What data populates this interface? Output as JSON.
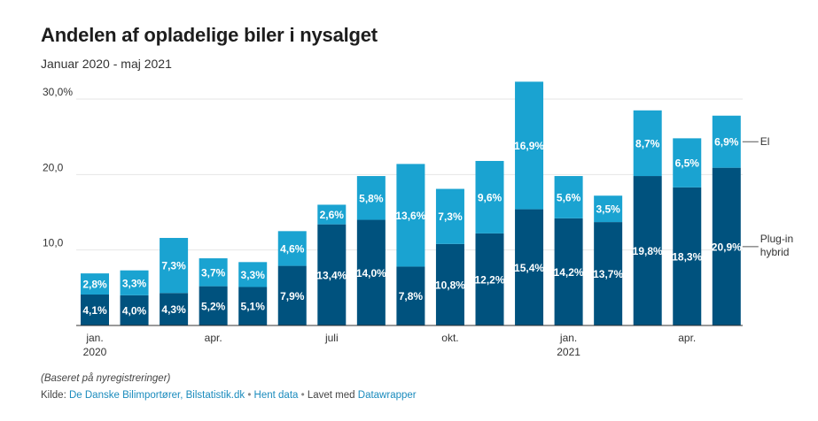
{
  "title": "Andelen af opladelige biler i nysalget",
  "subtitle": "Januar 2020 - maj 2021",
  "note": "(Baseret på nyregistreringer)",
  "footer": {
    "source_prefix": "Kilde:",
    "source_link": "De Danske Bilimportører, Bilstatistik.dk",
    "separator": "•",
    "data_link": "Hent data",
    "made_with_prefix": "Lavet med",
    "made_with_link": "Datawrapper"
  },
  "colors": {
    "plugin_hybrid": "#00527e",
    "el": "#1aa3d1",
    "axis": "#333333",
    "grid": "#e6e6e6",
    "link": "#1a8bbd"
  },
  "chart_data": {
    "type": "bar",
    "stacked": true,
    "title": "Andelen af opladelige biler i nysalget",
    "subtitle": "Januar 2020 - maj 2021",
    "ylim": [
      0,
      30
    ],
    "y_ticks": [
      10,
      20,
      30
    ],
    "y_tick_labels": [
      "10,0",
      "20,0",
      "30,0%"
    ],
    "grid": true,
    "legend_placement": "right, labels next to last bar",
    "categories": [
      "2020-01",
      "2020-02",
      "2020-03",
      "2020-04",
      "2020-05",
      "2020-06",
      "2020-07",
      "2020-08",
      "2020-09",
      "2020-10",
      "2020-11",
      "2020-12",
      "2021-01",
      "2021-02",
      "2021-03",
      "2021-04",
      "2021-05"
    ],
    "x_tick_labels": [
      {
        "index": 0,
        "lines": [
          "jan.",
          "2020"
        ]
      },
      {
        "index": 3,
        "lines": [
          "apr."
        ]
      },
      {
        "index": 6,
        "lines": [
          "juli"
        ]
      },
      {
        "index": 9,
        "lines": [
          "okt."
        ]
      },
      {
        "index": 12,
        "lines": [
          "jan.",
          "2021"
        ]
      },
      {
        "index": 15,
        "lines": [
          "apr."
        ]
      }
    ],
    "series": [
      {
        "name": "Plug-in hybrid",
        "legend_lines": [
          "Plug-in",
          "hybrid"
        ],
        "color": "#00527e",
        "values": [
          4.1,
          4.0,
          4.3,
          5.2,
          5.1,
          7.9,
          13.4,
          14.0,
          7.8,
          10.8,
          12.2,
          15.4,
          14.2,
          13.7,
          19.8,
          18.3,
          20.9
        ],
        "labels": [
          "4,1%",
          "4,0%",
          "4,3%",
          "5,2%",
          "5,1%",
          "7,9%",
          "13,4%",
          "14,0%",
          "7,8%",
          "10,8%",
          "12,2%",
          "15,4%",
          "14,2%",
          "13,7%",
          "19,8%",
          "18,3%",
          "20,9%"
        ]
      },
      {
        "name": "El",
        "legend_lines": [
          "El"
        ],
        "color": "#1aa3d1",
        "values": [
          2.8,
          3.3,
          7.3,
          3.7,
          3.3,
          4.6,
          2.6,
          5.8,
          13.6,
          7.3,
          9.6,
          16.9,
          5.6,
          3.5,
          8.7,
          6.5,
          6.9
        ],
        "labels": [
          "2,8%",
          "3,3%",
          "7,3%",
          "3,7%",
          "3,3%",
          "4,6%",
          "2,6%",
          "5,8%",
          "13,6%",
          "7,3%",
          "9,6%",
          "16,9%",
          "5,6%",
          "3,5%",
          "8,7%",
          "6,5%",
          "6,9%"
        ]
      }
    ]
  }
}
